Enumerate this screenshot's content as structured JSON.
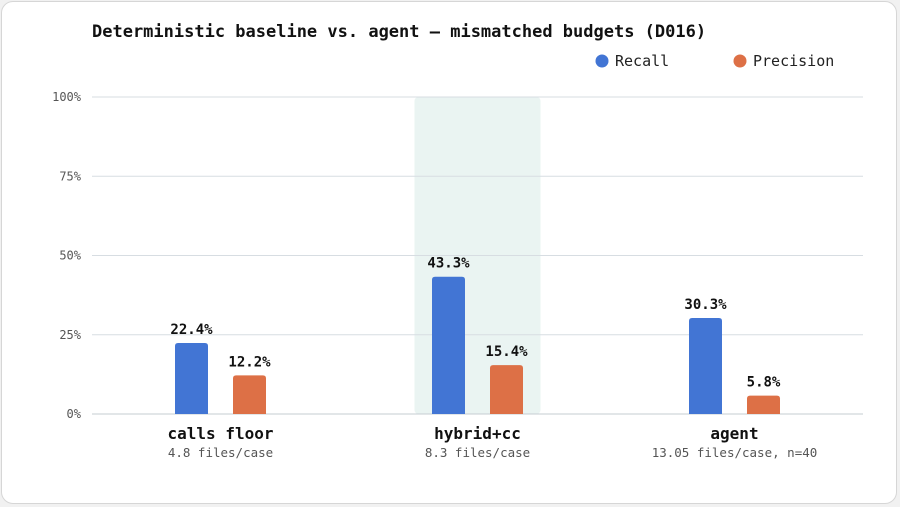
{
  "chart_data": {
    "type": "bar",
    "title": "Deterministic baseline vs. agent — mismatched budgets (D016)",
    "categories": [
      "calls floor",
      "hybrid+cc",
      "agent"
    ],
    "category_subtitles": [
      "4.8 files/case",
      "8.3 files/case",
      "13.05 files/case, n=40"
    ],
    "highlighted_category": "hybrid+cc",
    "series": [
      {
        "name": "Recall",
        "values": [
          22.4,
          43.3,
          30.3
        ],
        "labels": [
          "22.4%",
          "43.3%",
          "30.3%"
        ]
      },
      {
        "name": "Precision",
        "values": [
          12.2,
          15.4,
          5.8
        ],
        "labels": [
          "12.2%",
          "15.4%",
          "5.8%"
        ]
      }
    ],
    "ylim": [
      0,
      100
    ],
    "yticks": [
      0,
      25,
      50,
      75,
      100
    ],
    "ytick_labels": [
      "0%",
      "25%",
      "50%",
      "75%",
      "100%"
    ],
    "xlabel": "",
    "ylabel": "",
    "grid": true,
    "legend": "top-right"
  },
  "colors": {
    "recall": "#4275d4",
    "precision": "#dd7046",
    "highlight": "#eaf4f2",
    "grid": "#d7dde2",
    "axis": "#c6ccd2",
    "text": "#111111",
    "muted": "#555555"
  }
}
